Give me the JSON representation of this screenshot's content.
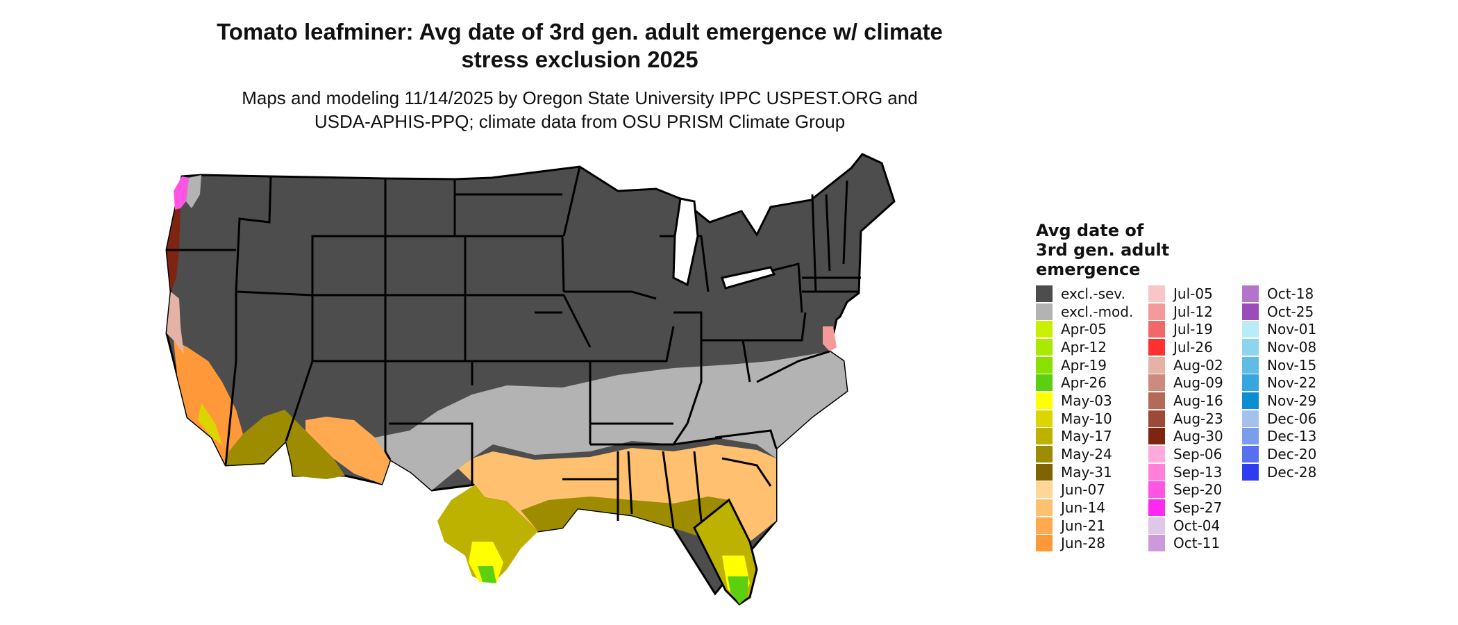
{
  "title_line1": "Tomato leafminer: Avg date of 3rd gen. adult emergence w/ climate",
  "title_line2": "stress exclusion 2025",
  "subtitle_line1": "Maps and modeling 11/14/2025 by Oregon State University IPPC USPEST.ORG and",
  "subtitle_line2": "USDA-APHIS-PPQ; climate data from OSU PRISM Climate Group",
  "legend": {
    "title_lines": [
      "Avg date of",
      "3rd gen. adult",
      "emergence"
    ],
    "columns": [
      [
        {
          "label": "excl.-sev.",
          "color": "#4d4d4d"
        },
        {
          "label": "excl.-mod.",
          "color": "#b3b3b3"
        },
        {
          "label": "Apr-05",
          "color": "#c8f000"
        },
        {
          "label": "Apr-12",
          "color": "#aaea00"
        },
        {
          "label": "Apr-19",
          "color": "#8ae000"
        },
        {
          "label": "Apr-26",
          "color": "#5cd010"
        },
        {
          "label": "May-03",
          "color": "#ffff00"
        },
        {
          "label": "May-10",
          "color": "#dcd600"
        },
        {
          "label": "May-17",
          "color": "#bdb200"
        },
        {
          "label": "May-24",
          "color": "#9e8c00"
        },
        {
          "label": "May-31",
          "color": "#7f6400"
        },
        {
          "label": "Jun-07",
          "color": "#ffd698"
        },
        {
          "label": "Jun-14",
          "color": "#ffc070"
        },
        {
          "label": "Jun-21",
          "color": "#ffaa50"
        },
        {
          "label": "Jun-28",
          "color": "#ff9838"
        }
      ],
      [
        {
          "label": "Jul-05",
          "color": "#f8c6c6"
        },
        {
          "label": "Jul-12",
          "color": "#f59a9a"
        },
        {
          "label": "Jul-19",
          "color": "#f26868"
        },
        {
          "label": "Jul-26",
          "color": "#ff3030"
        },
        {
          "label": "Aug-02",
          "color": "#e4b3a6"
        },
        {
          "label": "Aug-09",
          "color": "#cc8b7c"
        },
        {
          "label": "Aug-16",
          "color": "#b56a58"
        },
        {
          "label": "Aug-23",
          "color": "#9e4838"
        },
        {
          "label": "Aug-30",
          "color": "#7e2410"
        },
        {
          "label": "Sep-06",
          "color": "#ffaadc"
        },
        {
          "label": "Sep-13",
          "color": "#ff80d8"
        },
        {
          "label": "Sep-20",
          "color": "#ff55e2"
        },
        {
          "label": "Sep-27",
          "color": "#ff28f2"
        },
        {
          "label": "Oct-04",
          "color": "#e0c6e8"
        },
        {
          "label": "Oct-11",
          "color": "#cc9ad8"
        }
      ],
      [
        {
          "label": "Oct-18",
          "color": "#b474cc"
        },
        {
          "label": "Oct-25",
          "color": "#9c4cb8"
        },
        {
          "label": "Nov-01",
          "color": "#b8ecf8"
        },
        {
          "label": "Nov-08",
          "color": "#8cd4f0"
        },
        {
          "label": "Nov-15",
          "color": "#60bce6"
        },
        {
          "label": "Nov-22",
          "color": "#36a6dc"
        },
        {
          "label": "Nov-29",
          "color": "#0c8ed0"
        },
        {
          "label": "Dec-06",
          "color": "#a6c0ec"
        },
        {
          "label": "Dec-13",
          "color": "#7c9cec"
        },
        {
          "label": "Dec-20",
          "color": "#5670ee"
        },
        {
          "label": "Dec-28",
          "color": "#2e3cf0"
        }
      ]
    ]
  },
  "map_colors": {
    "severe": "#4d4d4d",
    "moderate": "#b3b3b3",
    "border": "#000000"
  }
}
